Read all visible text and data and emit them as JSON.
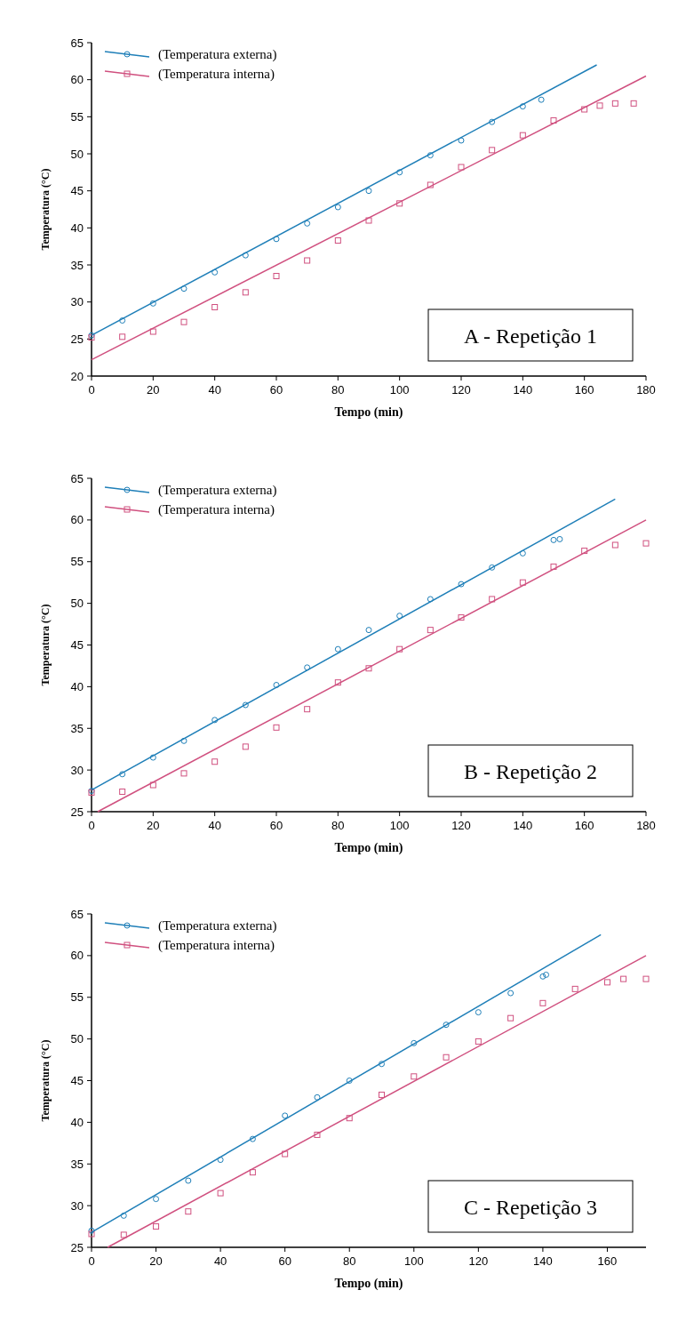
{
  "chart_data": [
    {
      "type": "scatter",
      "xlabel": "Tempo (min)",
      "ylabel": "Temperatura (°C)",
      "xlim": [
        0,
        180
      ],
      "ylim": [
        20,
        65
      ],
      "xticks": [
        0,
        20,
        40,
        60,
        80,
        100,
        120,
        140,
        160,
        180
      ],
      "yticks": [
        20,
        25,
        30,
        35,
        40,
        45,
        50,
        55,
        60,
        65
      ],
      "grid": false,
      "legend": "top left",
      "annotations": [
        "A - Repetição 1"
      ],
      "series": [
        {
          "name": "(Temperatura externa)",
          "type": "scatter",
          "marker": "circle",
          "color": "#1f7fb8",
          "x": [
            0,
            10,
            20,
            30,
            40,
            50,
            60,
            70,
            80,
            90,
            100,
            110,
            120,
            130,
            140,
            146
          ],
          "values": [
            25.5,
            27.5,
            29.8,
            31.8,
            34,
            36.3,
            38.5,
            40.6,
            42.8,
            45,
            47.5,
            49.8,
            51.8,
            54.3,
            56.4,
            57.3
          ]
        },
        {
          "name": "(Temperatura interna)",
          "type": "scatter",
          "marker": "square",
          "color": "#d0507f",
          "x": [
            0,
            10,
            20,
            30,
            40,
            50,
            60,
            70,
            80,
            90,
            100,
            110,
            120,
            130,
            140,
            150,
            160,
            165,
            170,
            176
          ],
          "values": [
            25.2,
            25.3,
            26,
            27.3,
            29.3,
            31.3,
            33.5,
            35.6,
            38.3,
            41,
            43.3,
            45.8,
            48.2,
            50.5,
            52.5,
            54.5,
            56,
            56.5,
            56.8,
            56.8
          ]
        },
        {
          "type": "line",
          "color": "#1f7fb8",
          "x": [
            0,
            164
          ],
          "values": [
            25.5,
            62
          ]
        },
        {
          "type": "line",
          "color": "#d0507f",
          "x": [
            0,
            180
          ],
          "values": [
            22.2,
            60.5
          ]
        }
      ]
    },
    {
      "type": "scatter",
      "xlabel": "Tempo (min)",
      "ylabel": "Temperatura (°C)",
      "xlim": [
        0,
        180
      ],
      "ylim": [
        25,
        65
      ],
      "xticks": [
        0,
        20,
        40,
        60,
        80,
        100,
        120,
        140,
        160,
        180
      ],
      "yticks": [
        25,
        30,
        35,
        40,
        45,
        50,
        55,
        60,
        65
      ],
      "grid": false,
      "legend": "top left",
      "annotations": [
        "B - Repetição 2"
      ],
      "series": [
        {
          "name": "(Temperatura externa)",
          "type": "scatter",
          "marker": "circle",
          "color": "#1f7fb8",
          "x": [
            0,
            10,
            20,
            30,
            40,
            50,
            60,
            70,
            80,
            90,
            100,
            110,
            120,
            130,
            140,
            150,
            152
          ],
          "values": [
            27.5,
            29.5,
            31.5,
            33.5,
            36,
            37.8,
            40.2,
            42.3,
            44.5,
            46.8,
            48.5,
            50.5,
            52.3,
            54.3,
            56,
            57.6,
            57.7
          ]
        },
        {
          "name": "(Temperatura interna)",
          "type": "scatter",
          "marker": "square",
          "color": "#d0507f",
          "x": [
            0,
            10,
            20,
            30,
            40,
            50,
            60,
            70,
            80,
            90,
            100,
            110,
            120,
            130,
            140,
            150,
            160,
            170,
            180
          ],
          "values": [
            27.3,
            27.4,
            28.2,
            29.6,
            31,
            32.8,
            35.1,
            37.3,
            40.5,
            42.2,
            44.5,
            46.8,
            48.3,
            50.5,
            52.5,
            54.4,
            56.3,
            57,
            57.2
          ]
        },
        {
          "type": "line",
          "color": "#1f7fb8",
          "x": [
            0,
            170
          ],
          "values": [
            27.6,
            62.5
          ]
        },
        {
          "type": "line",
          "color": "#d0507f",
          "x": [
            2,
            180
          ],
          "values": [
            25,
            60
          ]
        }
      ]
    },
    {
      "type": "scatter",
      "xlabel": "Tempo (min)",
      "ylabel": "Temperatura (°C)",
      "xlim": [
        0,
        172
      ],
      "ylim": [
        25,
        65
      ],
      "xticks": [
        0,
        20,
        40,
        60,
        80,
        100,
        120,
        140,
        160
      ],
      "yticks": [
        25,
        30,
        35,
        40,
        45,
        50,
        55,
        60,
        65
      ],
      "grid": false,
      "legend": "top left",
      "annotations": [
        "C - Repetição 3"
      ],
      "series": [
        {
          "name": "(Temperatura externa)",
          "type": "scatter",
          "marker": "circle",
          "color": "#1f7fb8",
          "x": [
            0,
            10,
            20,
            30,
            40,
            50,
            60,
            70,
            80,
            90,
            100,
            110,
            120,
            130,
            140,
            141
          ],
          "values": [
            27,
            28.8,
            30.8,
            33,
            35.5,
            38,
            40.8,
            43,
            45,
            47,
            49.5,
            51.7,
            53.2,
            55.5,
            57.5,
            57.7
          ]
        },
        {
          "name": "(Temperatura interna)",
          "type": "scatter",
          "marker": "square",
          "color": "#d0507f",
          "x": [
            0,
            10,
            20,
            30,
            40,
            50,
            60,
            70,
            80,
            90,
            100,
            110,
            120,
            130,
            140,
            150,
            160,
            165,
            172
          ],
          "values": [
            26.6,
            26.5,
            27.5,
            29.3,
            31.5,
            34,
            36.2,
            38.5,
            40.5,
            43.3,
            45.5,
            47.8,
            49.7,
            52.5,
            54.3,
            56,
            56.8,
            57.2,
            57.2
          ]
        },
        {
          "type": "line",
          "color": "#1f7fb8",
          "x": [
            0,
            158
          ],
          "values": [
            26.8,
            62.5
          ]
        },
        {
          "type": "line",
          "color": "#d0507f",
          "x": [
            5,
            172
          ],
          "values": [
            25,
            60
          ]
        }
      ]
    }
  ]
}
